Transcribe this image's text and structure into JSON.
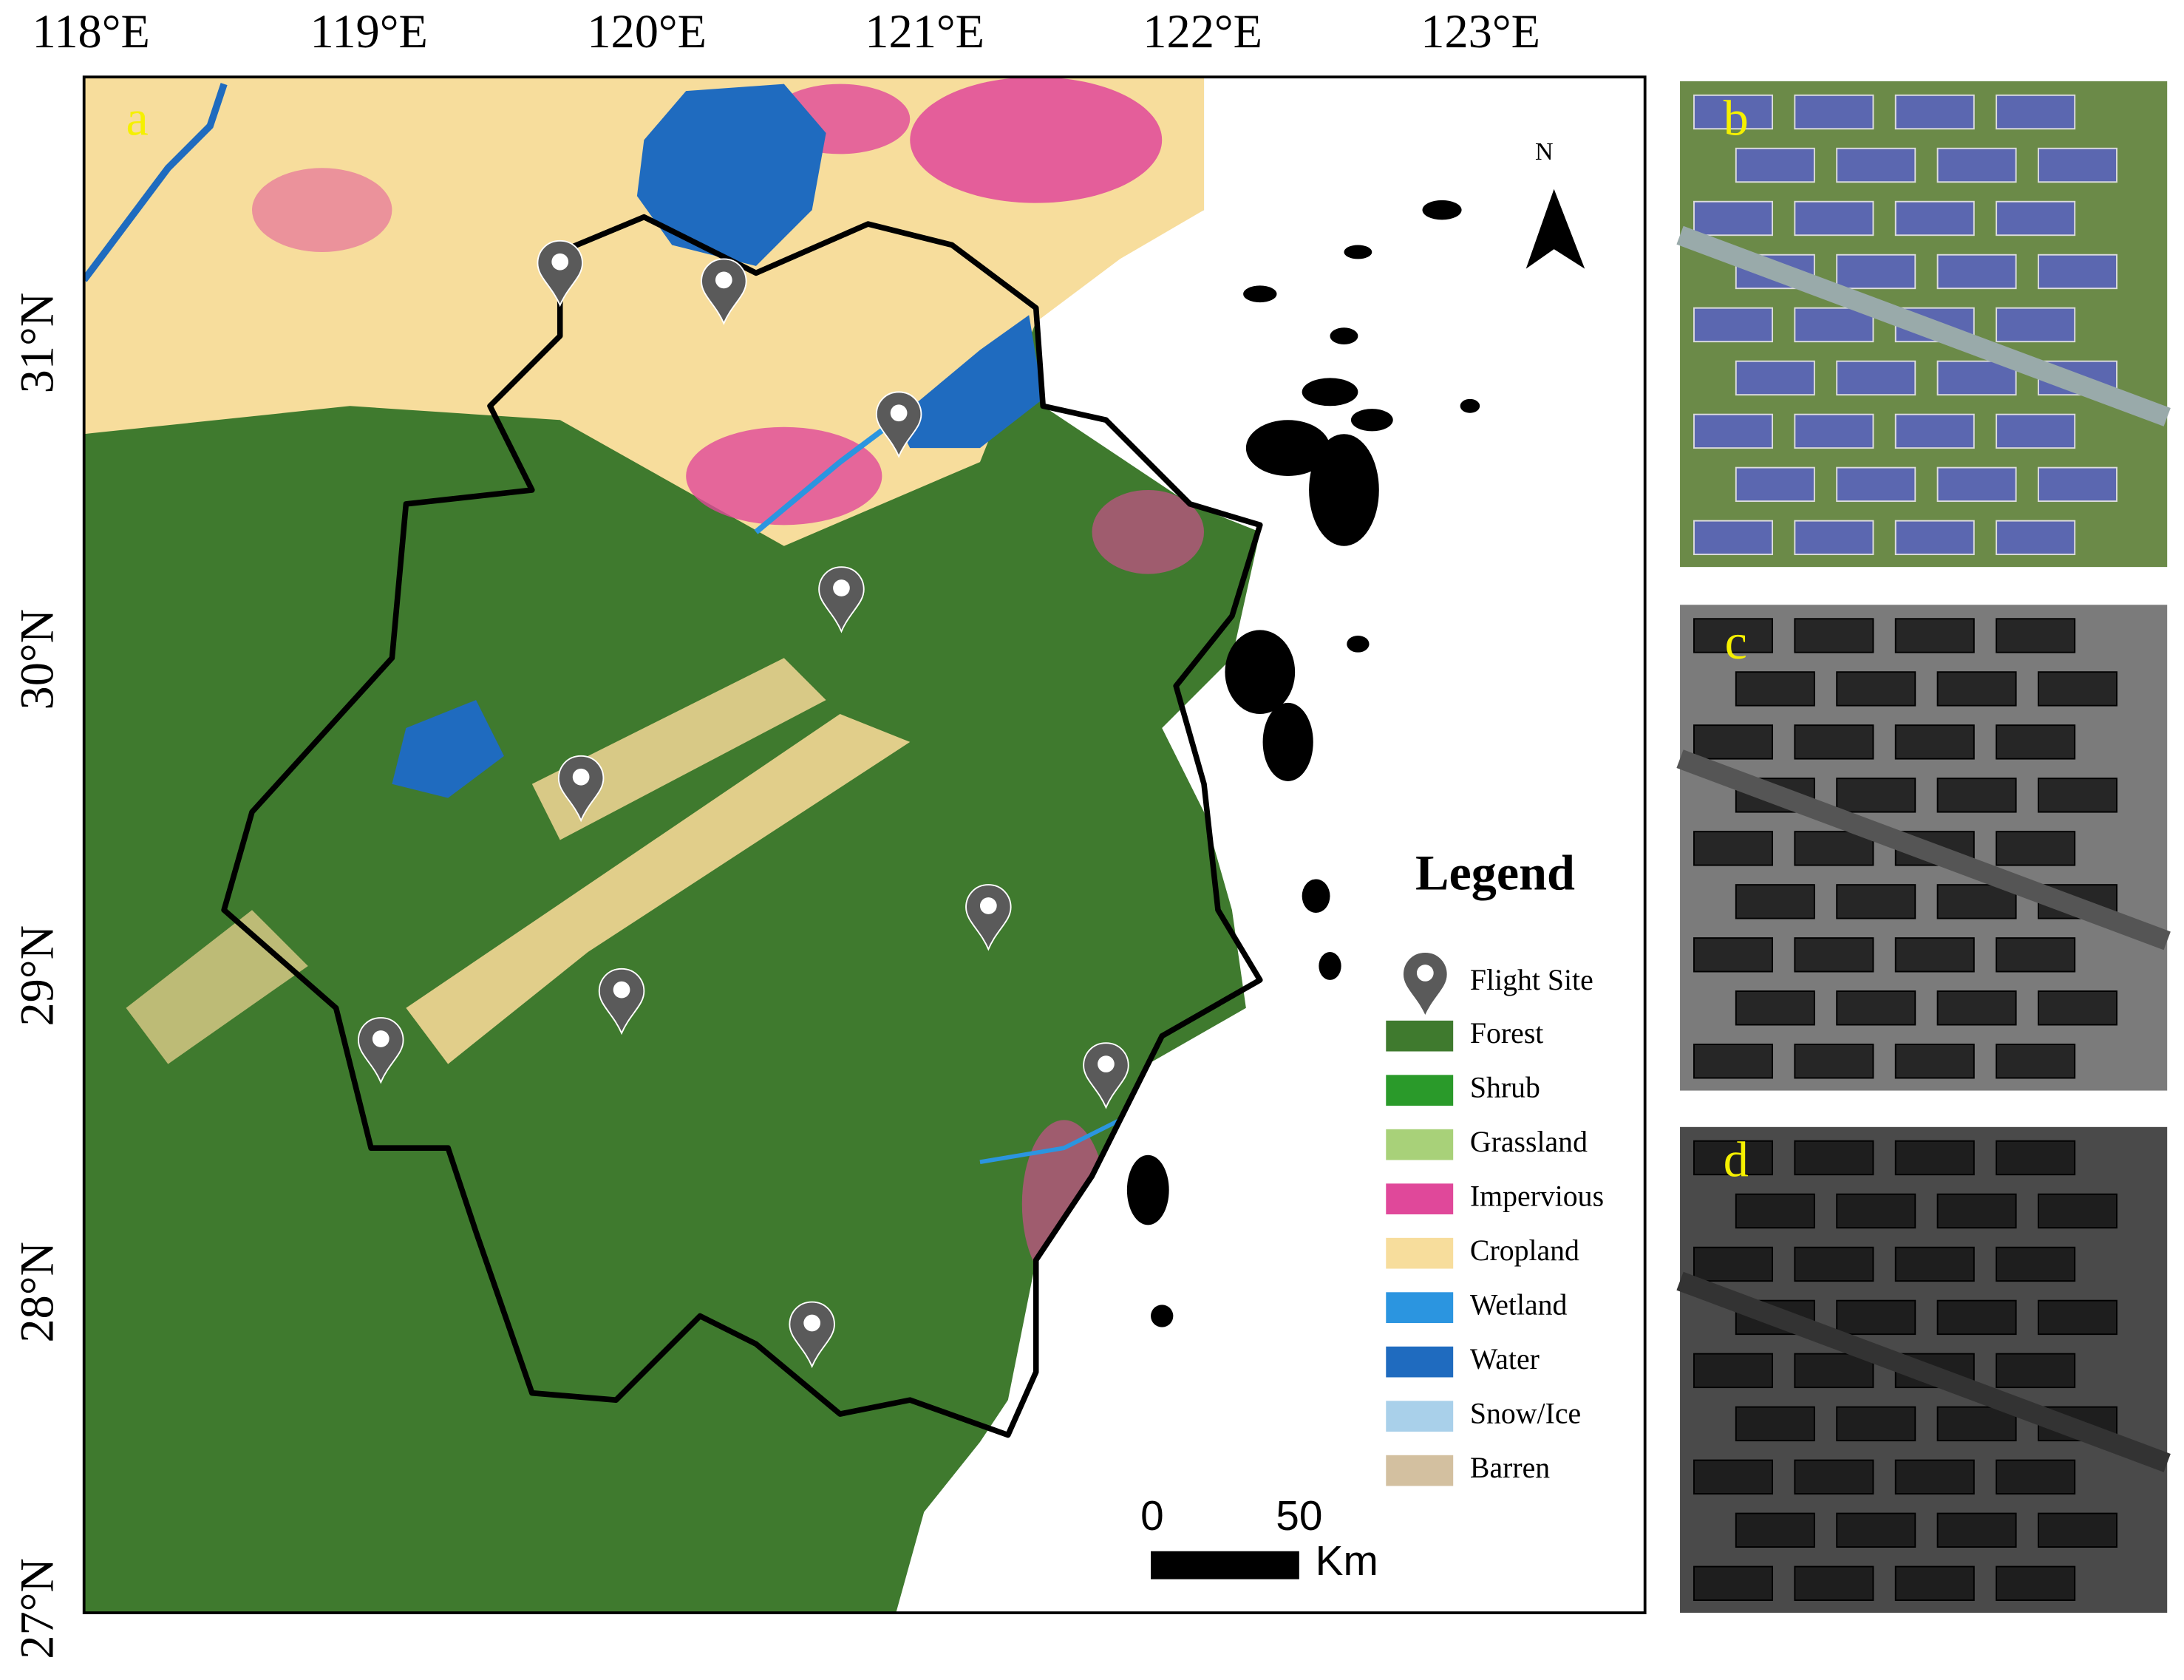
{
  "map": {
    "panel_labels": [
      "a",
      "b",
      "c",
      "d"
    ],
    "longitude_labels": [
      "118°E",
      "119°E",
      "120°E",
      "121°E",
      "122°E",
      "123°E"
    ],
    "latitude_labels": [
      "31°N",
      "30°N",
      "29°N",
      "28°N",
      "27°N"
    ],
    "north": "N",
    "legend": {
      "title": "Legend",
      "flight_site": "Flight Site",
      "items": [
        {
          "label": "Forest",
          "color": "#3f7a2e"
        },
        {
          "label": "Shrub",
          "color": "#2a9a2a"
        },
        {
          "label": "Grassland",
          "color": "#a8d179"
        },
        {
          "label": "Impervious",
          "color": "#e0489a"
        },
        {
          "label": "Cropland",
          "color": "#f7dd9c"
        },
        {
          "label": "Wetland",
          "color": "#2b95e0"
        },
        {
          "label": "Water",
          "color": "#1f6bbf"
        },
        {
          "label": "Snow/Ice",
          "color": "#a9d0ea"
        },
        {
          "label": "Barren",
          "color": "#d3c0a0"
        }
      ]
    },
    "scale_bar": {
      "ticks": [
        0,
        50
      ],
      "unit": "Km"
    }
  }
}
